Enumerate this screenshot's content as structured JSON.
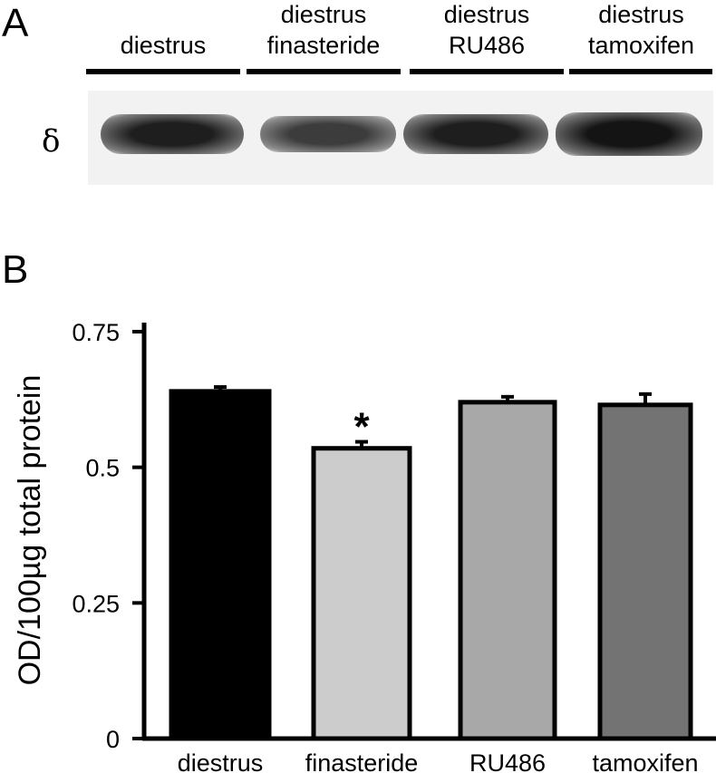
{
  "panel_a": {
    "letter": "A",
    "lanes": [
      {
        "line1": "",
        "line2": "diestrus"
      },
      {
        "line1": "diestrus",
        "line2": "finasteride"
      },
      {
        "line1": "diestrus",
        "line2": "RU486"
      },
      {
        "line1": "diestrus",
        "line2": "tamoxifen"
      }
    ],
    "band_label": "δ",
    "band_intensity": [
      0.95,
      0.8,
      0.95,
      1.0
    ]
  },
  "panel_b": {
    "letter": "B"
  },
  "chart_data": {
    "type": "bar",
    "categories": [
      "diestrus",
      "finasteride",
      "RU486",
      "tamoxifen"
    ],
    "values": [
      0.64,
      0.535,
      0.62,
      0.615
    ],
    "errors": [
      0.008,
      0.012,
      0.01,
      0.02
    ],
    "significance": [
      "",
      "*",
      "",
      ""
    ],
    "bar_colors": [
      "#000000",
      "#cccccc",
      "#a8a8a8",
      "#737373"
    ],
    "title": "",
    "xlabel": "",
    "ylabel": "OD/100µg total protein",
    "ylim": [
      0,
      0.75
    ],
    "yticks": [
      "0",
      "0.25",
      "0.5",
      "0.75"
    ],
    "ytick_values": [
      0,
      0.25,
      0.5,
      0.75
    ],
    "grid": false
  }
}
